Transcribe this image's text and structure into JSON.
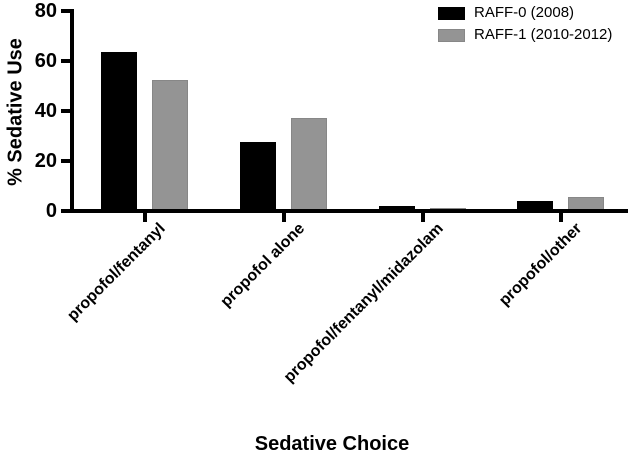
{
  "figure": {
    "background": "#ffffff",
    "axis_color": "#000000"
  },
  "chart_data": {
    "type": "bar",
    "title": "",
    "xlabel": "Sedative Choice",
    "ylabel": "% Sedative Use",
    "ylim": [
      0,
      80
    ],
    "yticks": [
      0,
      20,
      40,
      60,
      80
    ],
    "categories": [
      "propofol/fentanyl",
      "propofol alone",
      "propofol/fentanyl/midazolam",
      "propofol/other"
    ],
    "series": [
      {
        "name": "RAFF-0 (2008)",
        "color": "#000000",
        "values": [
          64,
          28,
          2.5,
          4.5
        ]
      },
      {
        "name": "RAFF-1 (2010-2012)",
        "color": "#949494",
        "values": [
          53,
          37.5,
          1.5,
          6
        ]
      }
    ],
    "legend_position": "top-right",
    "grid": false
  }
}
